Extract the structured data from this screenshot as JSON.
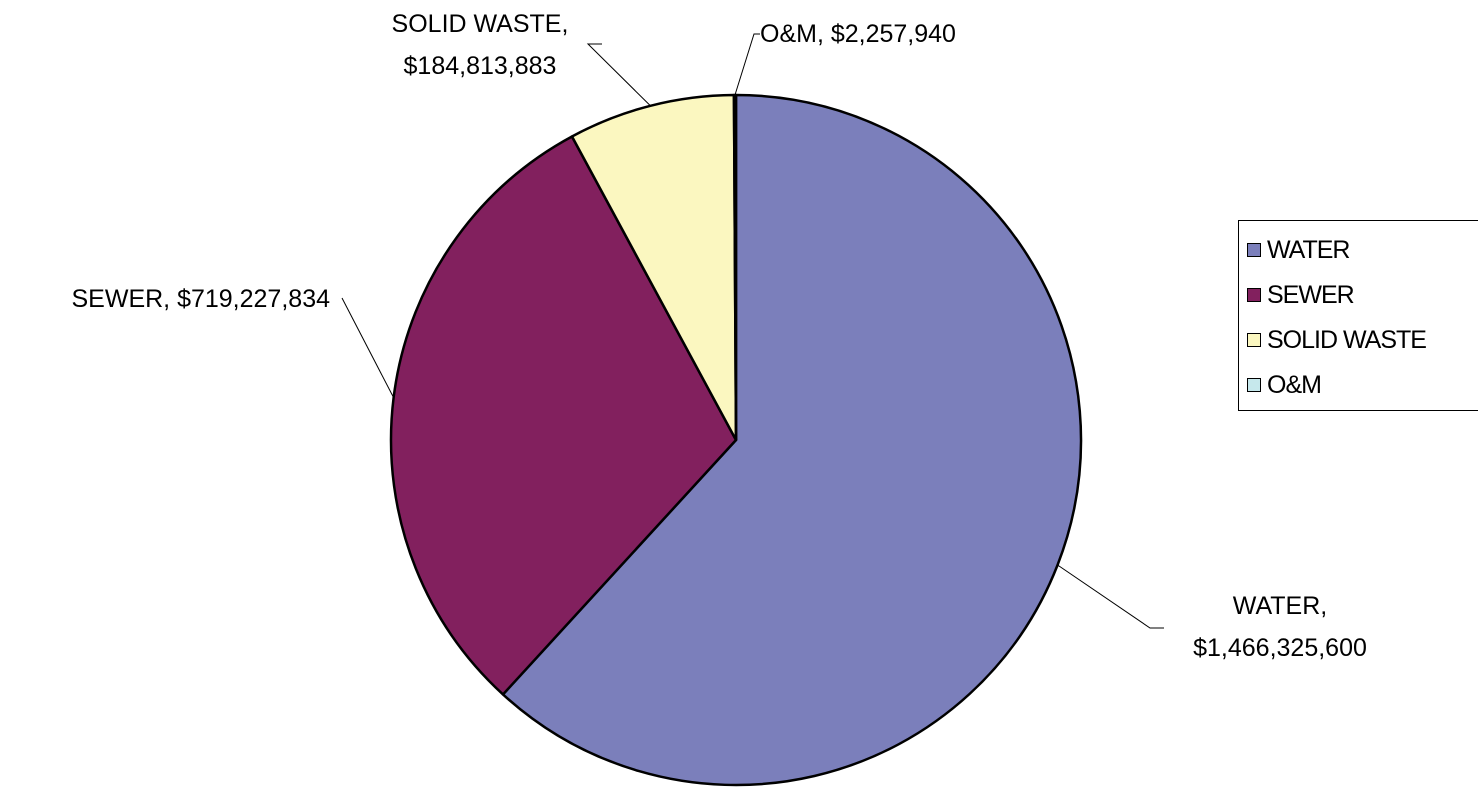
{
  "chart_data": {
    "type": "pie",
    "title": "",
    "series": [
      {
        "categories": [
          "WATER",
          "SEWER",
          "SOLID WASTE",
          "O&M"
        ],
        "values": [
          1466325600,
          719227834,
          184813883,
          2257940
        ],
        "colors": [
          "#7b7fbb",
          "#82205e",
          "#fbf7c0",
          "#c6e8ec"
        ]
      }
    ],
    "data_labels": [
      [
        "WATER,",
        "$1,466,325,600"
      ],
      [
        "SEWER, $719,227,834"
      ],
      [
        "SOLID WASTE,",
        "$184,813,883"
      ],
      [
        "O&M, $2,257,940"
      ]
    ],
    "legend": {
      "placement": "right",
      "items": [
        "WATER",
        "SEWER",
        "SOLID WASTE",
        "O&M"
      ]
    },
    "start_angle": "12 o'clock, clockwise"
  }
}
